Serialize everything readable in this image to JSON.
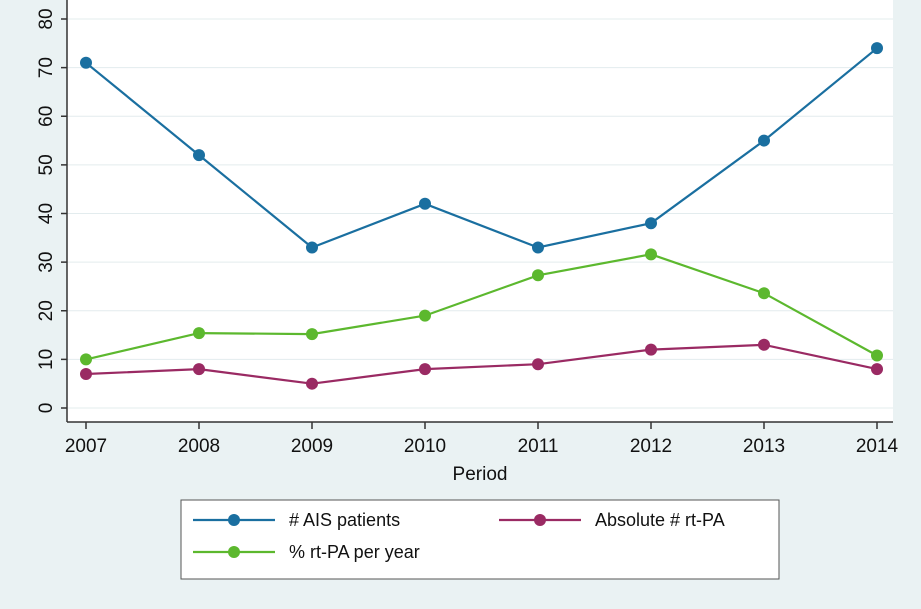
{
  "chart_data": {
    "type": "line",
    "title": "",
    "xlabel": "Period",
    "ylabel": "",
    "x": [
      2007,
      2008,
      2009,
      2010,
      2011,
      2012,
      2013,
      2014
    ],
    "x_tick_labels": [
      "2007",
      "2008",
      "2009",
      "2010",
      "2011",
      "2012",
      "2013",
      "2014"
    ],
    "y_ticks": [
      0,
      10,
      20,
      30,
      40,
      50,
      60,
      70,
      80
    ],
    "ylim": [
      -2.5,
      80
    ],
    "y_tick_orientation": "vertical",
    "grid": "horizontal",
    "legend_position": "bottom",
    "series": [
      {
        "name": "# AIS patients",
        "color": "#1a6fa0",
        "values": [
          71,
          52,
          33,
          42,
          33,
          38,
          55,
          74
        ]
      },
      {
        "name": "Absolute # rt-PA",
        "color": "#9a2a63",
        "values": [
          7,
          8,
          5,
          8,
          9,
          12,
          13,
          8
        ]
      },
      {
        "name": "% rt-PA per year",
        "color": "#5cb82e",
        "values": [
          10,
          15.4,
          15.2,
          19,
          27.3,
          31.6,
          23.6,
          10.8
        ]
      }
    ],
    "colors": {
      "background": "#eaf2f3",
      "plot_background": "#ffffff",
      "grid": "#e3ecee",
      "axis": "#333333"
    }
  }
}
